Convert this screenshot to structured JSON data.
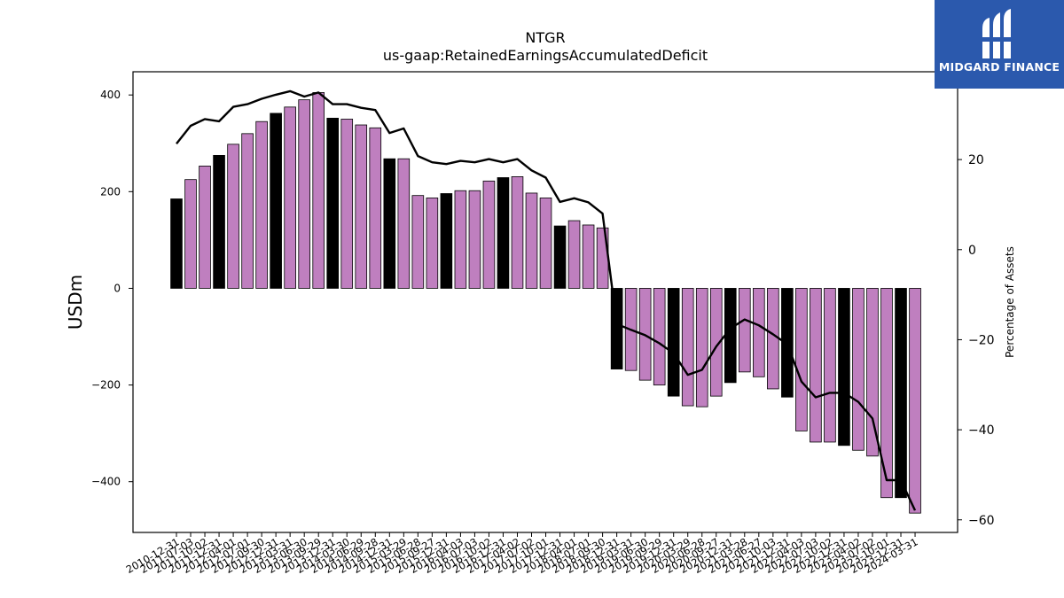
{
  "chart_data": {
    "type": "bar",
    "title": "NTGR",
    "subtitle": "us-gaap:RetainedEarningsAccumulatedDeficit",
    "ylabel": "USDm",
    "y2label": "Percentage of Assets",
    "ylim": [
      -505,
      448
    ],
    "y2lim": [
      -62.8,
      39.5
    ],
    "yticks": [
      -400,
      -200,
      0,
      200,
      400
    ],
    "y2ticks": [
      -60,
      -40,
      -20,
      0,
      20
    ],
    "categories": [
      "2010-12-31",
      "2011-07-03",
      "2011-10-02",
      "2011-12-31",
      "2012-04-01",
      "2012-07-01",
      "2012-09-30",
      "2012-12-31",
      "2013-03-31",
      "2013-06-30",
      "2013-09-29",
      "2013-12-31",
      "2014-03-30",
      "2014-06-29",
      "2014-09-28",
      "2014-12-31",
      "2015-03-29",
      "2015-06-28",
      "2015-09-27",
      "2015-12-31",
      "2016-04-03",
      "2016-07-03",
      "2016-10-02",
      "2016-12-31",
      "2017-04-02",
      "2017-07-02",
      "2017-10-01",
      "2017-12-31",
      "2018-04-01",
      "2018-07-01",
      "2018-09-30",
      "2018-12-31",
      "2019-03-31",
      "2019-06-30",
      "2019-09-29",
      "2019-12-31",
      "2020-03-29",
      "2020-06-28",
      "2020-09-27",
      "2020-12-31",
      "2021-03-28",
      "2021-06-27",
      "2021-10-03",
      "2021-12-31",
      "2022-04-03",
      "2022-07-03",
      "2022-10-02",
      "2022-12-31",
      "2023-04-02",
      "2023-07-02",
      "2023-10-01",
      "2023-12-31",
      "2024-03-31"
    ],
    "tick_labels": [
      "2010-12-31",
      "2011-07-03",
      "2011-10-02",
      "2011-12-31",
      "2012-04-01",
      "2012-07-01",
      "2012-09-30",
      "2012-12-31",
      "2013-03-31",
      "2013-06-30",
      "2013-09-29",
      "2013-12-31",
      "2014-03-30",
      "2014-06-29",
      "2014-09-28",
      "2014-12-31",
      "2015-03-29",
      "2015-06-28",
      "2015-09-27",
      "2015-12-31",
      "2016-04-03",
      "2016-07-03",
      "2016-10-02",
      "2016-12-31",
      "2017-04-02",
      "2017-07-02",
      "2017-10-01",
      "2017-12-31",
      "2018-04-01",
      "2018-07-01",
      "2018-09-30",
      "2018-12-31",
      "2019-03-31",
      "2019-06-30",
      "2019-09-29",
      "2019-12-31",
      "2020-03-29",
      "2020-06-28",
      "2020-09-27",
      "2020-12-31",
      "2021-03-28",
      "2021-06-27",
      "2021-10-03",
      "2021-12-31",
      "2022-04-03",
      "2022-07-03",
      "2022-10-02",
      "2022-12-31",
      "2023-04-02",
      "2023-07-02",
      "2023-10-01",
      "2023-12-31",
      "2024-03-31"
    ],
    "series": [
      {
        "type": "bar",
        "values": [
          185,
          225,
          253,
          275,
          298,
          320,
          345,
          362,
          375,
          390,
          405,
          352,
          350,
          338,
          332,
          268,
          268,
          192,
          187,
          196,
          202,
          202,
          222,
          229,
          231,
          197,
          187,
          129,
          140,
          131,
          125,
          -167,
          -170,
          -190,
          -200,
          -223,
          -243,
          -245,
          -223,
          -195,
          -173,
          -183,
          -208,
          -225,
          -295,
          -318,
          -318,
          -325,
          -335,
          -347,
          -433,
          -433,
          -465
        ],
        "colors": [
          "#000000",
          "#bf7fbf",
          "#bf7fbf",
          "#000000",
          "#bf7fbf",
          "#bf7fbf",
          "#bf7fbf",
          "#000000",
          "#bf7fbf",
          "#bf7fbf",
          "#bf7fbf",
          "#000000",
          "#bf7fbf",
          "#bf7fbf",
          "#bf7fbf",
          "#000000",
          "#bf7fbf",
          "#bf7fbf",
          "#bf7fbf",
          "#000000",
          "#bf7fbf",
          "#bf7fbf",
          "#bf7fbf",
          "#000000",
          "#bf7fbf",
          "#bf7fbf",
          "#bf7fbf",
          "#000000",
          "#bf7fbf",
          "#bf7fbf",
          "#bf7fbf",
          "#000000",
          "#bf7fbf",
          "#bf7fbf",
          "#bf7fbf",
          "#000000",
          "#bf7fbf",
          "#bf7fbf",
          "#bf7fbf",
          "#000000",
          "#bf7fbf",
          "#bf7fbf",
          "#bf7fbf",
          "#000000",
          "#bf7fbf",
          "#bf7fbf",
          "#bf7fbf",
          "#000000",
          "#bf7fbf",
          "#bf7fbf",
          "#bf7fbf",
          "#000000",
          "#bf7fbf"
        ]
      },
      {
        "type": "line",
        "axis": "right",
        "color": "#000000",
        "values": [
          23.5,
          27.5,
          29,
          28.5,
          31.7,
          32.3,
          33.5,
          34.4,
          35.2,
          34,
          34.9,
          32.3,
          32.3,
          31.5,
          31,
          25.9,
          26.9,
          20.8,
          19.4,
          19,
          19.7,
          19.4,
          20.1,
          19.4,
          20.1,
          17.6,
          16,
          10.6,
          11.4,
          10.5,
          8,
          -16.5,
          -17.8,
          -19,
          -20.8,
          -23,
          -27.8,
          -26.7,
          -21.5,
          -17.5,
          -15.5,
          -16.8,
          -18.8,
          -21,
          -29.3,
          -32.8,
          -31.8,
          -31.8,
          -33.8,
          -37.5,
          -51.2,
          -51.2,
          -57.9
        ]
      }
    ],
    "grid": false
  },
  "brand": {
    "name": "MIDGARD FINANCE",
    "color": "#2b59ad",
    "logo_icon": "midgard-logo-icon"
  }
}
